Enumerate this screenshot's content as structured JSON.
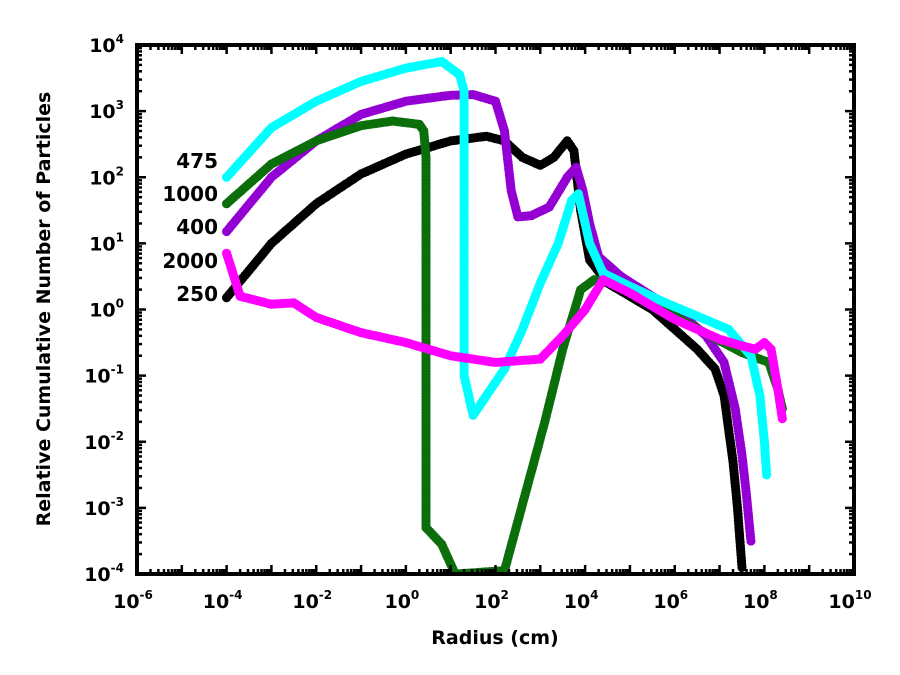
{
  "chart_data": {
    "type": "scatter",
    "title": "",
    "xlabel": "Radius (cm)",
    "ylabel": "Relative Cumulative Number of Particles",
    "xscale": "log",
    "yscale": "log",
    "xlim": [
      1e-06,
      10000000000.0
    ],
    "ylim": [
      0.0001,
      10000.0
    ],
    "grid": false,
    "x_ticks": [
      {
        "base": "10",
        "exp": "-6"
      },
      {
        "base": "10",
        "exp": "-4"
      },
      {
        "base": "10",
        "exp": "-2"
      },
      {
        "base": "10",
        "exp": "0"
      },
      {
        "base": "10",
        "exp": "2"
      },
      {
        "base": "10",
        "exp": "4"
      },
      {
        "base": "10",
        "exp": "6"
      },
      {
        "base": "10",
        "exp": "8"
      },
      {
        "base": "10",
        "exp": "10"
      }
    ],
    "y_ticks": [
      {
        "base": "10",
        "exp": "-4"
      },
      {
        "base": "10",
        "exp": "-3"
      },
      {
        "base": "10",
        "exp": "-2"
      },
      {
        "base": "10",
        "exp": "-1"
      },
      {
        "base": "10",
        "exp": "0"
      },
      {
        "base": "10",
        "exp": "1"
      },
      {
        "base": "10",
        "exp": "2"
      },
      {
        "base": "10",
        "exp": "3"
      },
      {
        "base": "10",
        "exp": "4"
      }
    ],
    "series": [
      {
        "name": "250",
        "color": "#000000",
        "points": [
          [
            -4,
            0.18
          ],
          [
            -3,
            1.0
          ],
          [
            -2,
            1.6
          ],
          [
            -1,
            2.05
          ],
          [
            0,
            2.35
          ],
          [
            1,
            2.55
          ],
          [
            1.8,
            2.62
          ],
          [
            2.2,
            2.55
          ],
          [
            2.6,
            2.3
          ],
          [
            3,
            2.18
          ],
          [
            3.3,
            2.3
          ],
          [
            3.6,
            2.55
          ],
          [
            3.75,
            2.4
          ],
          [
            3.9,
            1.5
          ],
          [
            4.1,
            0.75
          ],
          [
            4.5,
            0.4
          ],
          [
            5,
            0.2
          ],
          [
            5.5,
            0.0
          ],
          [
            6,
            -0.3
          ],
          [
            6.5,
            -0.6
          ],
          [
            6.9,
            -0.9
          ],
          [
            7.1,
            -1.3
          ],
          [
            7.2,
            -1.8
          ],
          [
            7.3,
            -2.3
          ],
          [
            7.4,
            -3.0
          ],
          [
            7.5,
            -3.9
          ]
        ]
      },
      {
        "name": "400",
        "color": "#9400d3",
        "points": [
          [
            -4,
            1.18
          ],
          [
            -3,
            2.0
          ],
          [
            -2,
            2.55
          ],
          [
            -1,
            2.95
          ],
          [
            0,
            3.15
          ],
          [
            1,
            3.24
          ],
          [
            1.5,
            3.25
          ],
          [
            2,
            3.15
          ],
          [
            2.2,
            2.7
          ],
          [
            2.35,
            1.8
          ],
          [
            2.5,
            1.4
          ],
          [
            2.8,
            1.42
          ],
          [
            3.2,
            1.55
          ],
          [
            3.6,
            2.0
          ],
          [
            3.8,
            2.15
          ],
          [
            3.95,
            1.8
          ],
          [
            4.1,
            1.3
          ],
          [
            4.3,
            0.8
          ],
          [
            4.8,
            0.5
          ],
          [
            5.5,
            0.2
          ],
          [
            6.2,
            -0.1
          ],
          [
            6.7,
            -0.4
          ],
          [
            7.1,
            -0.8
          ],
          [
            7.35,
            -1.5
          ],
          [
            7.5,
            -2.2
          ],
          [
            7.6,
            -2.8
          ],
          [
            7.7,
            -3.5
          ]
        ]
      },
      {
        "name": "1000",
        "color": "#0b6e0b",
        "points": [
          [
            -4,
            1.6
          ],
          [
            -3,
            2.2
          ],
          [
            -2,
            2.55
          ],
          [
            -1,
            2.78
          ],
          [
            -0.3,
            2.85
          ],
          [
            0.3,
            2.8
          ],
          [
            0.4,
            2.7
          ],
          [
            0.45,
            2.3
          ],
          [
            0.45,
            -3.3
          ],
          [
            0.8,
            -3.55
          ],
          [
            1.1,
            -4.0
          ],
          [
            2.2,
            -3.95
          ],
          [
            2.7,
            -2.7
          ],
          [
            3.1,
            -1.7
          ],
          [
            3.5,
            -0.6
          ],
          [
            3.9,
            0.3
          ],
          [
            4.2,
            0.45
          ],
          [
            4.6,
            0.42
          ],
          [
            5.3,
            0.15
          ],
          [
            6,
            -0.1
          ],
          [
            6.8,
            -0.4
          ],
          [
            7.5,
            -0.65
          ],
          [
            8.1,
            -0.8
          ],
          [
            8.3,
            -1.2
          ],
          [
            8.4,
            -1.5
          ]
        ]
      },
      {
        "name": "475",
        "color": "#00ffff",
        "points": [
          [
            -4,
            2.0
          ],
          [
            -3,
            2.75
          ],
          [
            -2,
            3.15
          ],
          [
            -1,
            3.45
          ],
          [
            0,
            3.65
          ],
          [
            0.8,
            3.75
          ],
          [
            1.2,
            3.55
          ],
          [
            1.3,
            3.3
          ],
          [
            1.3,
            -1.0
          ],
          [
            1.5,
            -1.6
          ],
          [
            1.8,
            -1.3
          ],
          [
            2.2,
            -0.9
          ],
          [
            2.6,
            -0.3
          ],
          [
            3.0,
            0.4
          ],
          [
            3.4,
            1.0
          ],
          [
            3.7,
            1.65
          ],
          [
            3.85,
            1.75
          ],
          [
            4.1,
            1.0
          ],
          [
            4.4,
            0.55
          ],
          [
            5.0,
            0.35
          ],
          [
            5.8,
            0.1
          ],
          [
            6.5,
            -0.1
          ],
          [
            7.2,
            -0.3
          ],
          [
            7.7,
            -0.7
          ],
          [
            7.9,
            -1.3
          ],
          [
            8.0,
            -2.0
          ],
          [
            8.05,
            -2.5
          ]
        ]
      },
      {
        "name": "2000",
        "color": "#ff00ff",
        "points": [
          [
            -4,
            0.85
          ],
          [
            -3.7,
            0.2
          ],
          [
            -3,
            0.08
          ],
          [
            -2.5,
            0.1
          ],
          [
            -2,
            -0.12
          ],
          [
            -1,
            -0.35
          ],
          [
            0,
            -0.5
          ],
          [
            1,
            -0.7
          ],
          [
            2,
            -0.8
          ],
          [
            3,
            -0.75
          ],
          [
            3.5,
            -0.4
          ],
          [
            4,
            0.0
          ],
          [
            4.4,
            0.45
          ],
          [
            5,
            0.25
          ],
          [
            5.5,
            0.05
          ],
          [
            6,
            -0.15
          ],
          [
            6.5,
            -0.3
          ],
          [
            7,
            -0.45
          ],
          [
            7.5,
            -0.55
          ],
          [
            7.8,
            -0.6
          ],
          [
            8.0,
            -0.5
          ],
          [
            8.15,
            -0.6
          ],
          [
            8.3,
            -1.2
          ],
          [
            8.4,
            -1.65
          ]
        ]
      }
    ],
    "annotations": [
      {
        "text": "475",
        "series": "475"
      },
      {
        "text": "1000",
        "series": "1000"
      },
      {
        "text": "400",
        "series": "400"
      },
      {
        "text": "2000",
        "series": "2000"
      },
      {
        "text": "250",
        "series": "250"
      }
    ]
  }
}
